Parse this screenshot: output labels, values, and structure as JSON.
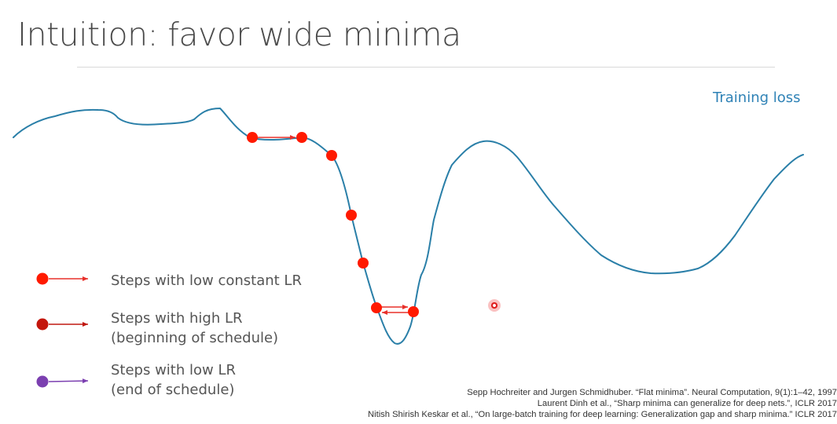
{
  "slide": {
    "title": "Intuition: favor wide minima",
    "curve_label": "Training loss"
  },
  "legend": [
    {
      "line1": "Steps with low constant LR",
      "line2": "",
      "dot_color": "#ff1a00",
      "arrow_color": "#e8302a"
    },
    {
      "line1": "Steps with high LR",
      "line2": "(beginning of schedule)",
      "dot_color": "#c4160c",
      "arrow_color": "#c01810"
    },
    {
      "line1": "Steps with low LR",
      "line2": "(end of schedule)",
      "dot_color": "#7b3fb0",
      "arrow_color": "#7b3fb0"
    }
  ],
  "references": [
    "Sepp Hochreiter and Jurgen Schmidhuber. “Flat minima”. Neural Computation, 9(1):1–42, 1997",
    "Laurent Dinh et al., “Sharp minima can generalize for deep nets.”, ICLR 2017",
    "Nitish Shirish Keskar et al., “On large-batch training for deep learning: Generalization gap and sharp minima.” ICLR 2017"
  ],
  "colors": {
    "curve": "#2a7fa8",
    "step_dot": "#ff1a00",
    "step_arrow": "#e8302a"
  }
}
